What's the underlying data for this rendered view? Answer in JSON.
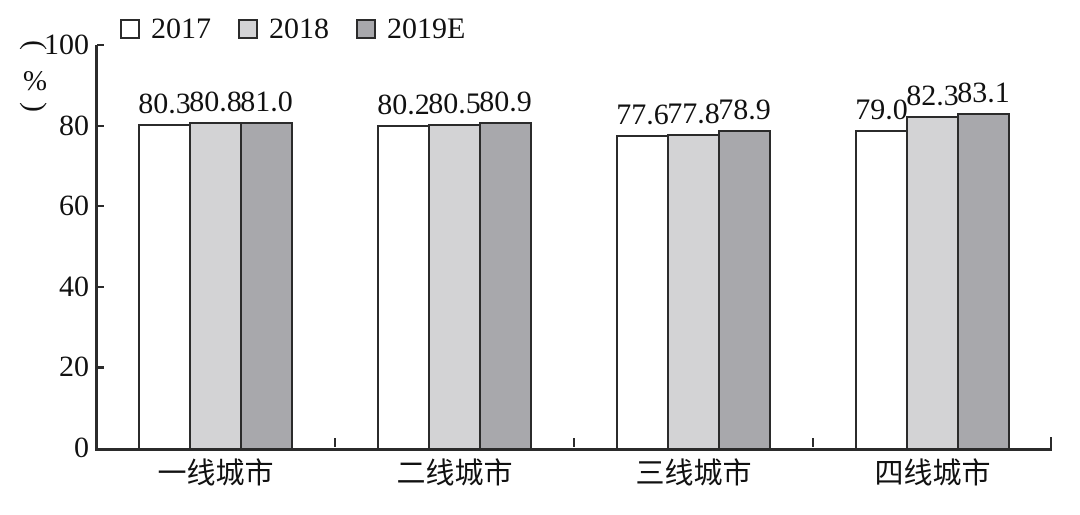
{
  "figure": {
    "background": "#ffffff",
    "ylabel_open": "(",
    "ylabel_symbol": "%",
    "ylabel_close": ")"
  },
  "chart_data": {
    "type": "bar",
    "title": "",
    "xlabel": "",
    "ylabel": "(%)",
    "ylim": [
      0,
      100
    ],
    "yticks": [
      0,
      20,
      40,
      60,
      80,
      100
    ],
    "grid": false,
    "legend_position": "top",
    "axis_color": "#2b2b2b",
    "bar_border_color": "#2b2b2b",
    "text_color": "#111111",
    "categories": [
      "一线城市",
      "二线城市",
      "三线城市",
      "四线城市"
    ],
    "series": [
      {
        "name": "2017",
        "fill": "#ffffff",
        "values": [
          80.3,
          80.2,
          77.6,
          79.0
        ]
      },
      {
        "name": "2018",
        "fill": "#d3d3d5",
        "values": [
          80.8,
          80.5,
          77.8,
          82.3
        ]
      },
      {
        "name": "2019E",
        "fill": "#a8a8ac",
        "values": [
          81.0,
          80.9,
          78.9,
          83.1
        ]
      }
    ]
  }
}
